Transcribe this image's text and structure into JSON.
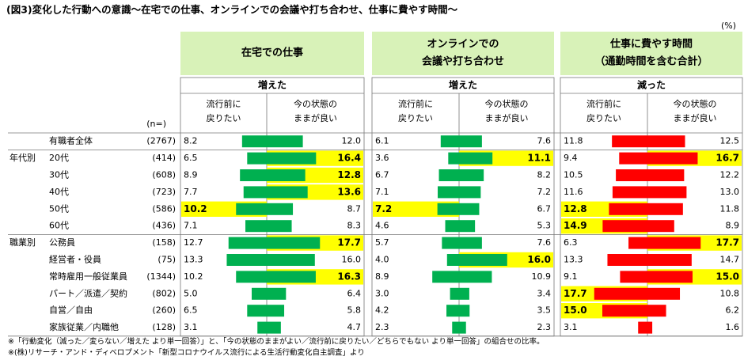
{
  "chart_data": {
    "type": "butterfly",
    "title": "(図3)変化した行動への意識～在宅での仕事、オンラインでの会議や打ち合わせ、仕事に費やす時間～",
    "unit_label": "(%)",
    "n_label": "(n=)",
    "categories": [
      "有職者全体",
      "20代",
      "30代",
      "40代",
      "50代",
      "60代",
      "公務員",
      "経営者・役員",
      "常時雇用一般従業員",
      "パート／派遣／契約",
      "自営／自由",
      "家族従業／内職他"
    ],
    "group_labels": [
      null,
      "年代別",
      null,
      null,
      null,
      null,
      "職業別",
      null,
      null,
      null,
      null,
      null
    ],
    "n": [
      "(2767)",
      "(414)",
      "(608)",
      "(723)",
      "(586)",
      "(436)",
      "(158)",
      "(75)",
      "(1344)",
      "(802)",
      "(260)",
      "(128)"
    ],
    "xlim": [
      0,
      20
    ],
    "panels": [
      {
        "title": [
          "在宅での仕事"
        ],
        "subtitle": "増えた",
        "color": "#00b050",
        "columns": [
          {
            "name": [
              "流行前に",
              "戻りたい"
            ],
            "values": [
              8.2,
              6.5,
              8.9,
              7.7,
              10.2,
              7.1,
              12.7,
              13.3,
              10.2,
              5.0,
              6.5,
              3.1
            ],
            "value_labels": [
              "8.2",
              "6.5",
              "8.9",
              "7.7",
              "10.2",
              "7.1",
              "12.7",
              "13.3",
              "10.2",
              "5.0",
              "6.5",
              "3.1"
            ],
            "highlight": [
              false,
              false,
              false,
              false,
              true,
              false,
              false,
              false,
              false,
              false,
              false,
              false
            ]
          },
          {
            "name": [
              "今の状態の",
              "ままが良い"
            ],
            "values": [
              12.0,
              16.4,
              12.8,
              13.6,
              8.7,
              8.3,
              17.7,
              16.0,
              16.3,
              6.4,
              5.8,
              4.7
            ],
            "value_labels": [
              "12.0",
              "16.4",
              "12.8",
              "13.6",
              "8.7",
              "8.3",
              "17.7",
              "16.0",
              "16.3",
              "6.4",
              "5.8",
              "4.7"
            ],
            "highlight": [
              false,
              true,
              true,
              true,
              false,
              false,
              true,
              false,
              true,
              false,
              false,
              false
            ]
          }
        ]
      },
      {
        "title": [
          "オンラインでの",
          "会議や打ち合わせ"
        ],
        "subtitle": "増えた",
        "color": "#00b050",
        "columns": [
          {
            "name": [
              "流行前に",
              "戻りたい"
            ],
            "values": [
              6.1,
              3.6,
              6.7,
              7.1,
              7.2,
              4.6,
              5.7,
              4.0,
              8.9,
              3.0,
              4.2,
              2.3
            ],
            "value_labels": [
              "6.1",
              "3.6",
              "6.7",
              "7.1",
              "7.2",
              "4.6",
              "5.7",
              "4.0",
              "8.9",
              "3.0",
              "4.2",
              "2.3"
            ],
            "highlight": [
              false,
              false,
              false,
              false,
              true,
              false,
              false,
              false,
              false,
              false,
              false,
              false
            ]
          },
          {
            "name": [
              "今の状態の",
              "ままが良い"
            ],
            "values": [
              7.6,
              11.1,
              8.2,
              7.2,
              6.7,
              5.3,
              7.6,
              16.0,
              10.9,
              3.4,
              3.5,
              2.3
            ],
            "value_labels": [
              "7.6",
              "11.1",
              "8.2",
              "7.2",
              "6.7",
              "5.3",
              "7.6",
              "16.0",
              "10.9",
              "3.4",
              "3.5",
              "2.3"
            ],
            "highlight": [
              false,
              true,
              false,
              false,
              false,
              false,
              false,
              true,
              false,
              false,
              false,
              false
            ]
          }
        ]
      },
      {
        "title": [
          "仕事に費やす時間",
          "（通勤時間を含む合計）"
        ],
        "subtitle": "減った",
        "color": "#ff0000",
        "columns": [
          {
            "name": [
              "流行前に",
              "戻りたい"
            ],
            "values": [
              11.8,
              9.4,
              10.5,
              11.6,
              12.8,
              14.9,
              6.3,
              13.3,
              9.1,
              17.7,
              15.0,
              3.1
            ],
            "value_labels": [
              "11.8",
              "9.4",
              "10.5",
              "11.6",
              "12.8",
              "14.9",
              "6.3",
              "13.3",
              "9.1",
              "17.7",
              "15.0",
              "3.1"
            ],
            "highlight": [
              false,
              false,
              false,
              false,
              true,
              true,
              false,
              false,
              false,
              true,
              true,
              false
            ]
          },
          {
            "name": [
              "今の状態の",
              "ままが良い"
            ],
            "values": [
              12.5,
              16.7,
              12.2,
              13.0,
              11.8,
              8.9,
              17.7,
              14.7,
              15.0,
              10.8,
              6.2,
              1.6
            ],
            "value_labels": [
              "12.5",
              "16.7",
              "12.2",
              "13.0",
              "11.8",
              "8.9",
              "17.7",
              "14.7",
              "15.0",
              "10.8",
              "6.2",
              "1.6"
            ],
            "highlight": [
              false,
              true,
              false,
              false,
              false,
              false,
              true,
              false,
              true,
              false,
              false,
              false
            ]
          }
        ]
      }
    ],
    "highlight_color": "#ffff00",
    "notes": [
      "※「行動変化（減った／変らない／増えた より単一回答）」と、「今の状態のままがよい／流行前に戻りたい／どちらでもない より単一回答」の組合せの比率。",
      "※(株)リサーチ・アンド・ディベロプメント「新型コロナウイルス流行による生活行動変化自主調査」より"
    ]
  }
}
